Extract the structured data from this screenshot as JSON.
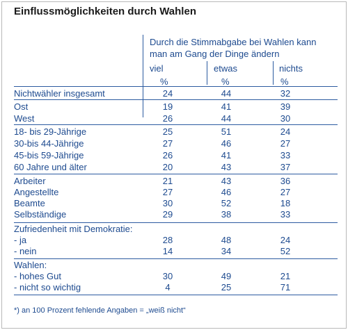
{
  "title": "Einflussmöglichkeiten durch Wahlen",
  "header_line1": "Durch die Stimmabgabe bei Wahlen kann",
  "header_line2": "man am Gang der Dinge ändern",
  "columns": [
    "viel",
    "etwas",
    "nichts"
  ],
  "unit": "%",
  "rows": {
    "nichtwaehler": {
      "label": "Nichtwähler insgesamt",
      "v": [
        "24",
        "44",
        "32"
      ]
    },
    "ost": {
      "label": "Ost",
      "v": [
        "19",
        "41",
        "39"
      ]
    },
    "west": {
      "label": "West",
      "v": [
        "26",
        "44",
        "30"
      ]
    },
    "a18": {
      "label": "18- bis 29-Jährige",
      "v": [
        "25",
        "51",
        "24"
      ]
    },
    "a30": {
      "label": "30-bis 44-Jährige",
      "v": [
        "27",
        "46",
        "27"
      ]
    },
    "a45": {
      "label": "45-bis 59-Jährige",
      "v": [
        "26",
        "41",
        "33"
      ]
    },
    "a60": {
      "label": "60 Jahre und älter",
      "v": [
        "20",
        "43",
        "37"
      ]
    },
    "arbeiter": {
      "label": "Arbeiter",
      "v": [
        "21",
        "43",
        "36"
      ]
    },
    "angestellte": {
      "label": "Angestellte",
      "v": [
        "27",
        "46",
        "27"
      ]
    },
    "beamte": {
      "label": "Beamte",
      "v": [
        "30",
        "52",
        "18"
      ]
    },
    "selbst": {
      "label": "Selbständige",
      "v": [
        "29",
        "38",
        "33"
      ]
    },
    "zufr_head": {
      "label": "Zufriedenheit mit Demokratie:"
    },
    "zufr_ja": {
      "label": "- ja",
      "v": [
        "28",
        "48",
        "24"
      ]
    },
    "zufr_nein": {
      "label": "- nein",
      "v": [
        "14",
        "34",
        "52"
      ]
    },
    "wahlen_head": {
      "label": "Wahlen:"
    },
    "wahlen_hoch": {
      "label": "- hohes Gut",
      "v": [
        "30",
        "49",
        "21"
      ]
    },
    "wahlen_nicht": {
      "label": "- nicht so wichtig",
      "v": [
        "4",
        "25",
        "71"
      ]
    }
  },
  "footnote": "*)  an 100 Prozent fehlende Angaben = „weiß nicht“"
}
